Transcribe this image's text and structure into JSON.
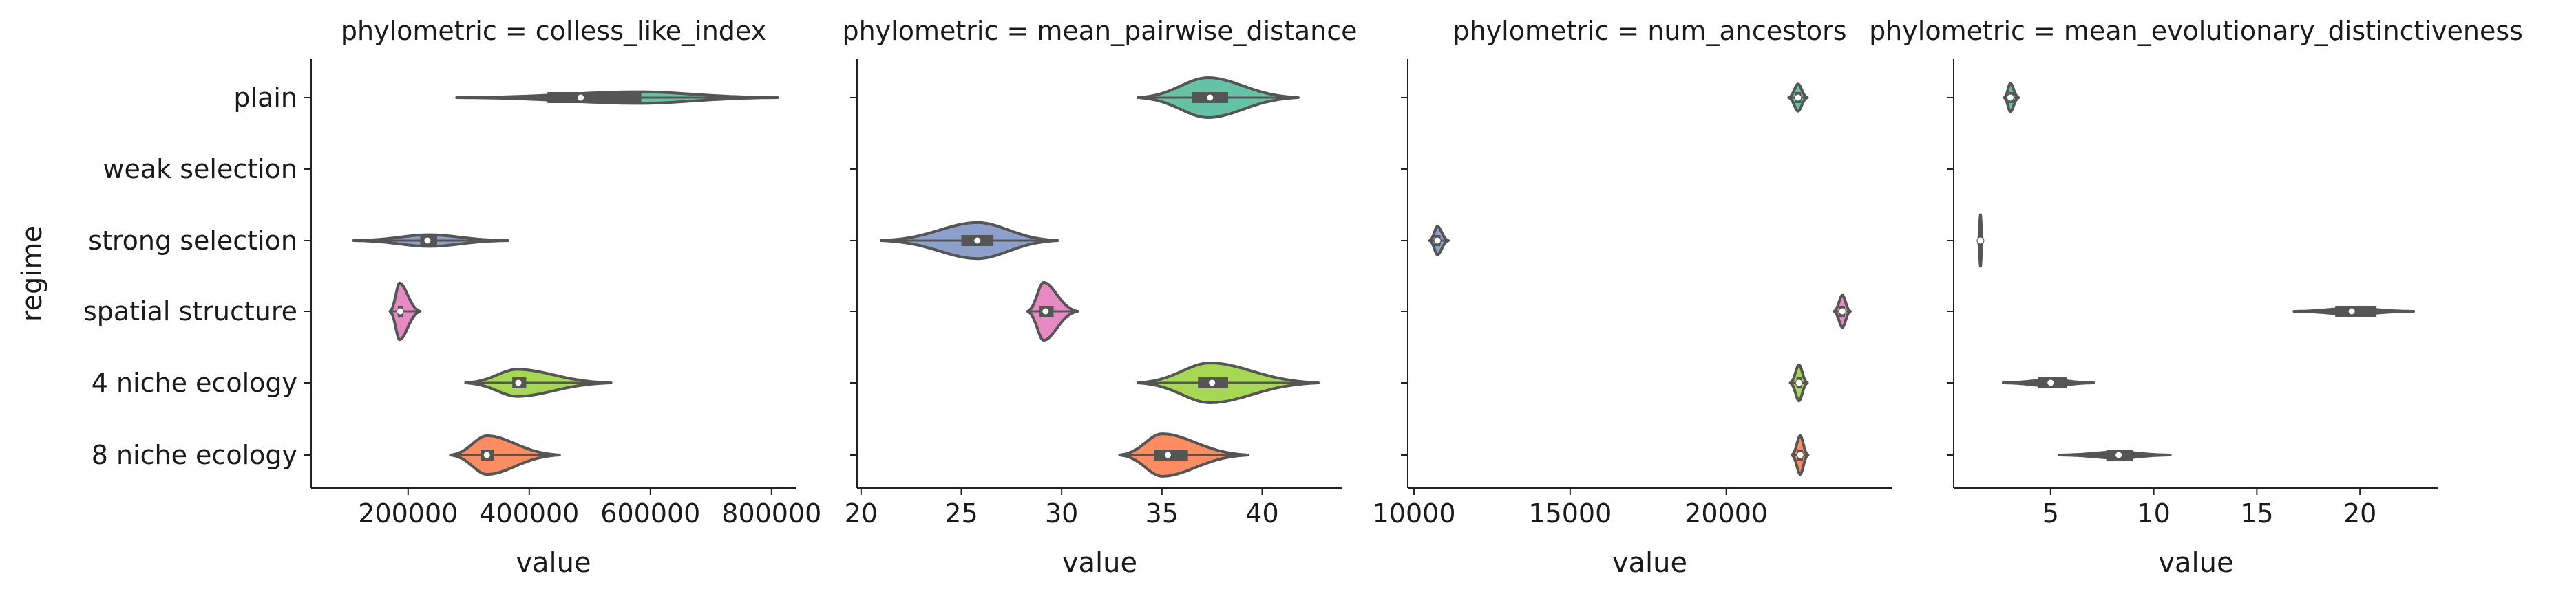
{
  "figure": {
    "ylabel": "regime",
    "xlabel": "value",
    "categories": [
      "plain",
      "weak selection",
      "strong selection",
      "spatial structure",
      "4 niche ecology",
      "8 niche ecology"
    ],
    "colors": {
      "plain": "#66c2a5",
      "weak selection": "#fc8d62",
      "strong selection": "#8da0cb",
      "spatial structure": "#e78ac3",
      "4 niche ecology": "#a6d854",
      "8 niche ecology": "#fc8d62",
      "outline": "#555555",
      "median": "#ffffff"
    }
  },
  "chart_data": [
    {
      "type": "violin",
      "title": "phylometric = colless_like_index",
      "xlabel": "value",
      "ylabel": "regime",
      "xlim": [
        40000,
        840000
      ],
      "xticks": [
        200000,
        400000,
        600000,
        800000
      ],
      "xtick_labels": [
        "200000",
        "400000",
        "600000",
        "800000"
      ],
      "series": [
        {
          "category": "plain",
          "min": 280000,
          "q1": 430000,
          "median": 485000,
          "q3": 585000,
          "max": 810000,
          "peak": 580000,
          "halfwidth": 0.09
        },
        {
          "category": "weak selection"
        },
        {
          "category": "strong selection",
          "min": 110000,
          "q1": 220000,
          "median": 232000,
          "q3": 248000,
          "max": 365000,
          "peak": 235000,
          "halfwidth": 0.09
        },
        {
          "category": "spatial structure",
          "min": 170000,
          "q1": 183000,
          "median": 187000,
          "q3": 192000,
          "max": 220000,
          "peak": 186000,
          "halfwidth": 0.44
        },
        {
          "category": "4 niche ecology",
          "min": 295000,
          "q1": 372000,
          "median": 382000,
          "q3": 395000,
          "max": 535000,
          "peak": 380000,
          "halfwidth": 0.21
        },
        {
          "category": "8 niche ecology",
          "min": 270000,
          "q1": 320000,
          "median": 330000,
          "q3": 342000,
          "max": 450000,
          "peak": 330000,
          "halfwidth": 0.3
        }
      ]
    },
    {
      "type": "violin",
      "title": "phylometric = mean_pairwise_distance",
      "xlabel": "value",
      "ylabel": "",
      "xlim": [
        19.8,
        44.0
      ],
      "xticks": [
        20,
        25,
        30,
        35,
        40
      ],
      "xtick_labels": [
        "20",
        "25",
        "30",
        "35",
        "40"
      ],
      "series": [
        {
          "category": "plain",
          "min": 33.8,
          "q1": 36.5,
          "median": 37.4,
          "q3": 38.3,
          "max": 41.8,
          "peak": 37.3,
          "halfwidth": 0.31
        },
        {
          "category": "weak selection"
        },
        {
          "category": "strong selection",
          "min": 21.0,
          "q1": 25.0,
          "median": 25.8,
          "q3": 26.6,
          "max": 29.8,
          "peak": 25.8,
          "halfwidth": 0.28
        },
        {
          "category": "spatial structure",
          "min": 28.3,
          "q1": 28.9,
          "median": 29.2,
          "q3": 29.6,
          "max": 30.8,
          "peak": 29.1,
          "halfwidth": 0.45
        },
        {
          "category": "4 niche ecology",
          "min": 33.8,
          "q1": 36.8,
          "median": 37.5,
          "q3": 38.3,
          "max": 42.8,
          "peak": 37.4,
          "halfwidth": 0.31
        },
        {
          "category": "8 niche ecology",
          "min": 32.9,
          "q1": 34.6,
          "median": 35.3,
          "q3": 36.3,
          "max": 39.3,
          "peak": 35.0,
          "halfwidth": 0.33
        }
      ]
    },
    {
      "type": "violin",
      "title": "phylometric = num_ancestors",
      "xlabel": "value",
      "ylabel": "",
      "xlim": [
        9800,
        25300
      ],
      "xticks": [
        10000,
        15000,
        20000
      ],
      "xtick_labels": [
        "10000",
        "15000",
        "20000"
      ],
      "series": [
        {
          "category": "plain",
          "min": 22000,
          "q1": 22200,
          "median": 22300,
          "q3": 22400,
          "max": 22600,
          "peak": 22300,
          "halfwidth": 0.21
        },
        {
          "category": "weak selection"
        },
        {
          "category": "strong selection",
          "min": 10500,
          "q1": 10650,
          "median": 10750,
          "q3": 10850,
          "max": 11100,
          "peak": 10750,
          "halfwidth": 0.22
        },
        {
          "category": "spatial structure",
          "min": 23450,
          "q1": 23620,
          "median": 23720,
          "q3": 23800,
          "max": 23980,
          "peak": 23720,
          "halfwidth": 0.25
        },
        {
          "category": "4 niche ecology",
          "min": 22050,
          "q1": 22250,
          "median": 22330,
          "q3": 22420,
          "max": 22600,
          "peak": 22330,
          "halfwidth": 0.28
        },
        {
          "category": "8 niche ecology",
          "min": 22100,
          "q1": 22280,
          "median": 22370,
          "q3": 22460,
          "max": 22620,
          "peak": 22370,
          "halfwidth": 0.3
        }
      ]
    },
    {
      "type": "violin",
      "title": "phylometric = mean_evolutionary_distinctiveness",
      "xlabel": "value",
      "ylabel": "",
      "xlim": [
        0.3,
        23.8
      ],
      "xticks": [
        5,
        10,
        15,
        20
      ],
      "xtick_labels": [
        "5",
        "10",
        "15",
        "20"
      ],
      "series": [
        {
          "category": "plain",
          "min": 2.75,
          "q1": 2.95,
          "median": 3.05,
          "q3": 3.2,
          "max": 3.45,
          "peak": 3.05,
          "halfwidth": 0.22
        },
        {
          "category": "weak selection"
        },
        {
          "category": "strong selection",
          "min": 1.5,
          "q1": 1.55,
          "median": 1.6,
          "q3": 1.65,
          "max": 1.7,
          "peak": 1.6,
          "halfwidth": 0.4
        },
        {
          "category": "spatial structure",
          "min": 16.8,
          "q1": 18.8,
          "median": 19.6,
          "q3": 20.8,
          "max": 22.6,
          "peak": 19.6,
          "halfwidth": 0.05
        },
        {
          "category": "4 niche ecology",
          "min": 2.7,
          "q1": 4.4,
          "median": 5.0,
          "q3": 5.8,
          "max": 7.1,
          "peak": 5.0,
          "halfwidth": 0.05
        },
        {
          "category": "8 niche ecology",
          "min": 5.4,
          "q1": 7.7,
          "median": 8.3,
          "q3": 9.0,
          "max": 10.8,
          "peak": 8.3,
          "halfwidth": 0.05
        }
      ]
    }
  ]
}
